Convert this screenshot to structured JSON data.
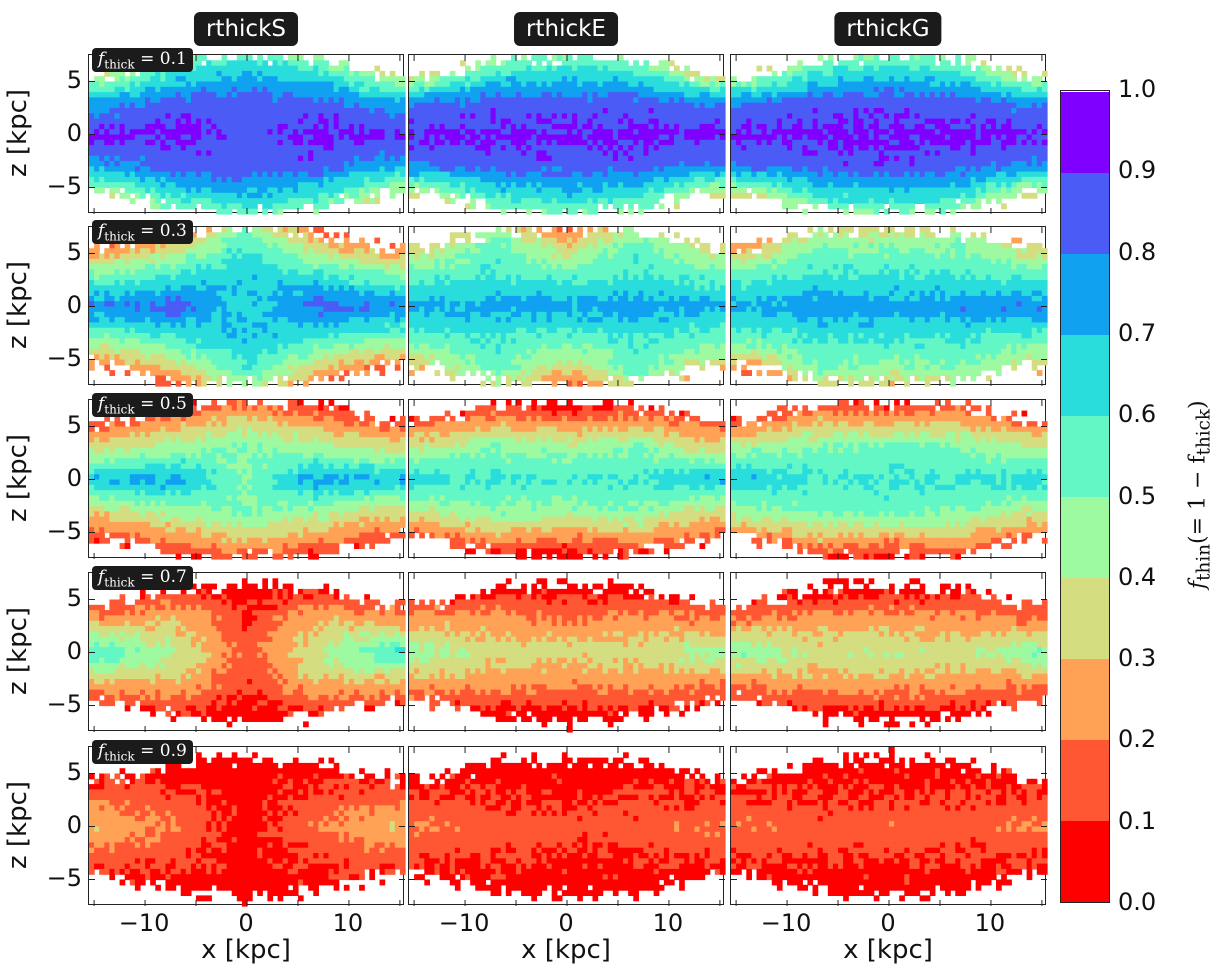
{
  "chart_data": {
    "type": "heatmap",
    "subtype": "filled contour grid",
    "columns": [
      "rthickS",
      "rthickE",
      "rthickG"
    ],
    "row_labels": [
      "0.1",
      "0.3",
      "0.5",
      "0.7",
      "0.9"
    ],
    "row_label_prefix": "f",
    "row_label_sub": "thick",
    "xlabel": "x [kpc]",
    "ylabel": "z [kpc]",
    "xlim": [
      -15.5,
      15.5
    ],
    "ylim": [
      -7.5,
      7.5
    ],
    "xticks": [
      "−10",
      "0",
      "10"
    ],
    "xtick_values": [
      -10,
      0,
      10
    ],
    "yticks": [
      "5",
      "0",
      "−5"
    ],
    "ytick_values": [
      5,
      0,
      -5
    ],
    "colorbar": {
      "label_prefix": "f",
      "label_sub": "thin",
      "label_rest": "(= 1 − f",
      "label_sub2": "thick",
      "label_end": ")",
      "range": [
        0,
        1
      ],
      "levels": [
        0.0,
        0.1,
        0.2,
        0.3,
        0.4,
        0.5,
        0.6,
        0.7,
        0.8,
        0.9,
        1.0
      ],
      "ticks": [
        "1.0",
        "0.9",
        "0.8",
        "0.7",
        "0.6",
        "0.5",
        "0.4",
        "0.3",
        "0.2",
        "0.1",
        "0.0"
      ],
      "colors": [
        "#ff0000",
        "#ff5733",
        "#ffa256",
        "#d4dd80",
        "#9dfaa0",
        "#63f7c6",
        "#2adddd",
        "#10a2f0",
        "#4a5cf5",
        "#8000ff"
      ],
      "colormap": "rainbow"
    },
    "contour_lines": [
      0.2,
      0.4,
      0.7,
      0.9
    ],
    "grid_x": [
      -14,
      -7,
      0,
      7,
      14
    ],
    "grid_abs_z": [
      0,
      3,
      6
    ],
    "extent_abs_zmax": [
      5.5,
      7,
      7.5,
      7,
      5.5
    ],
    "panels": [
      [
        {
          "values": [
            [
              0.92,
              0.93,
              0.85,
              0.93,
              0.92
            ],
            [
              0.75,
              0.85,
              0.85,
              0.85,
              0.72
            ],
            [
              0.35,
              0.6,
              0.7,
              0.6,
              0.35
            ]
          ]
        },
        {
          "values": [
            [
              0.92,
              0.93,
              0.93,
              0.93,
              0.92
            ],
            [
              0.8,
              0.85,
              0.85,
              0.85,
              0.8
            ],
            [
              0.3,
              0.6,
              0.65,
              0.6,
              0.3
            ]
          ]
        },
        {
          "values": [
            [
              0.92,
              0.93,
              0.93,
              0.93,
              0.92
            ],
            [
              0.8,
              0.85,
              0.87,
              0.85,
              0.78
            ],
            [
              0.3,
              0.6,
              0.65,
              0.6,
              0.3
            ]
          ]
        }
      ],
      [
        {
          "values": [
            [
              0.8,
              0.85,
              0.65,
              0.85,
              0.8
            ],
            [
              0.5,
              0.6,
              0.7,
              0.6,
              0.5
            ],
            [
              0.15,
              0.3,
              0.6,
              0.3,
              0.15
            ]
          ]
        },
        {
          "values": [
            [
              0.72,
              0.75,
              0.75,
              0.75,
              0.72
            ],
            [
              0.55,
              0.6,
              0.55,
              0.6,
              0.55
            ],
            [
              0.3,
              0.55,
              0.3,
              0.55,
              0.3
            ]
          ]
        },
        {
          "values": [
            [
              0.72,
              0.78,
              0.75,
              0.78,
              0.8
            ],
            [
              0.55,
              0.6,
              0.6,
              0.6,
              0.55
            ],
            [
              0.2,
              0.5,
              0.45,
              0.5,
              0.3
            ]
          ]
        }
      ],
      [
        {
          "values": [
            [
              0.7,
              0.75,
              0.5,
              0.75,
              0.7
            ],
            [
              0.35,
              0.45,
              0.5,
              0.45,
              0.35
            ],
            [
              0.1,
              0.2,
              0.3,
              0.2,
              0.1
            ]
          ]
        },
        {
          "values": [
            [
              0.65,
              0.6,
              0.6,
              0.6,
              0.7
            ],
            [
              0.4,
              0.5,
              0.45,
              0.5,
              0.35
            ],
            [
              0.1,
              0.2,
              0.15,
              0.2,
              0.1
            ]
          ]
        },
        {
          "values": [
            [
              0.7,
              0.6,
              0.6,
              0.6,
              0.65
            ],
            [
              0.45,
              0.5,
              0.55,
              0.5,
              0.4
            ],
            [
              0.1,
              0.25,
              0.2,
              0.25,
              0.1
            ]
          ]
        }
      ],
      [
        {
          "values": [
            [
              0.6,
              0.4,
              0.15,
              0.4,
              0.6
            ],
            [
              0.25,
              0.3,
              0.1,
              0.3,
              0.25
            ],
            [
              0.05,
              0.08,
              0.05,
              0.08,
              0.05
            ]
          ]
        },
        {
          "values": [
            [
              0.45,
              0.35,
              0.35,
              0.35,
              0.45
            ],
            [
              0.25,
              0.25,
              0.2,
              0.25,
              0.2
            ],
            [
              0.05,
              0.05,
              0.05,
              0.05,
              0.05
            ]
          ]
        },
        {
          "values": [
            [
              0.5,
              0.35,
              0.4,
              0.35,
              0.5
            ],
            [
              0.2,
              0.25,
              0.25,
              0.25,
              0.2
            ],
            [
              0.05,
              0.05,
              0.05,
              0.05,
              0.05
            ]
          ]
        }
      ],
      [
        {
          "values": [
            [
              0.3,
              0.2,
              0.05,
              0.2,
              0.3
            ],
            [
              0.15,
              0.12,
              0.05,
              0.12,
              0.15
            ],
            [
              0.05,
              0.05,
              0.05,
              0.05,
              0.05
            ]
          ]
        },
        {
          "values": [
            [
              0.2,
              0.15,
              0.15,
              0.15,
              0.2
            ],
            [
              0.1,
              0.1,
              0.08,
              0.1,
              0.1
            ],
            [
              0.05,
              0.05,
              0.05,
              0.05,
              0.05
            ]
          ]
        },
        {
          "values": [
            [
              0.2,
              0.15,
              0.18,
              0.15,
              0.2
            ],
            [
              0.1,
              0.1,
              0.1,
              0.1,
              0.1
            ],
            [
              0.05,
              0.05,
              0.05,
              0.05,
              0.05
            ]
          ]
        }
      ]
    ]
  }
}
